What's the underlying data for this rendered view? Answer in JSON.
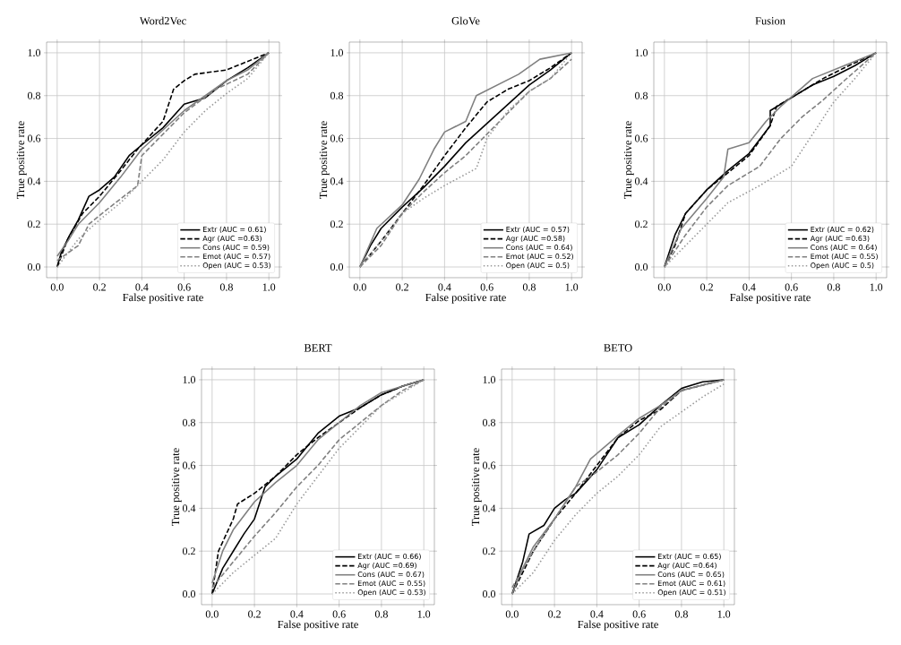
{
  "chart_data": [
    {
      "type": "line",
      "title": "Word2Vec",
      "xlabel": "False positive rate",
      "ylabel": "True positive rate",
      "xlim": [
        -0.05,
        1.05
      ],
      "ylim": [
        -0.05,
        1.05
      ],
      "xticks": [
        {
          "value": 0,
          "label": "0.0"
        },
        {
          "value": 0.2,
          "label": "0.2"
        },
        {
          "value": 0.4,
          "label": "0.4"
        },
        {
          "value": 0.6,
          "label": "0.6"
        },
        {
          "value": 0.8,
          "label": "0.8"
        },
        {
          "value": 1,
          "label": "1.0"
        }
      ],
      "yticks": [
        {
          "value": 0,
          "label": "0.0"
        },
        {
          "value": 0.2,
          "label": "0.2"
        },
        {
          "value": 0.4,
          "label": "0.4"
        },
        {
          "value": 0.6,
          "label": "0.6"
        },
        {
          "value": 0.8,
          "label": "0.8"
        },
        {
          "value": 1,
          "label": "1.0"
        }
      ],
      "grid": true,
      "legend": "bottom right",
      "series": [
        {
          "name": "Extr (AUC = 0.61)",
          "color": "#000000",
          "line_style": "solid",
          "x": [
            0,
            0.02,
            0.06,
            0.1,
            0.15,
            0.2,
            0.27,
            0.34,
            0.4,
            0.5,
            0.6,
            0.7,
            0.8,
            0.9,
            1
          ],
          "values": [
            0,
            0.07,
            0.15,
            0.22,
            0.33,
            0.36,
            0.42,
            0.52,
            0.57,
            0.65,
            0.76,
            0.79,
            0.87,
            0.93,
            1
          ]
        },
        {
          "name": "Agr (AUC =0.63)",
          "color": "#000000",
          "line_style": "dashed",
          "x": [
            0,
            0.05,
            0.12,
            0.2,
            0.3,
            0.38,
            0.5,
            0.55,
            0.6,
            0.65,
            0.8,
            0.9,
            1
          ],
          "values": [
            0,
            0.13,
            0.25,
            0.33,
            0.45,
            0.55,
            0.68,
            0.83,
            0.87,
            0.9,
            0.92,
            0.96,
            1
          ]
        },
        {
          "name": "Cons (AUC = 0.59)",
          "color": "#808080",
          "line_style": "solid",
          "x": [
            0,
            0.05,
            0.1,
            0.2,
            0.3,
            0.4,
            0.5,
            0.6,
            0.7,
            0.8,
            0.9,
            1
          ],
          "values": [
            0.05,
            0.12,
            0.2,
            0.3,
            0.42,
            0.55,
            0.64,
            0.73,
            0.8,
            0.87,
            0.92,
            1
          ]
        },
        {
          "name": "Emot (AUC = 0.57)",
          "color": "#808080",
          "line_style": "dashed",
          "x": [
            0,
            0.1,
            0.15,
            0.25,
            0.38,
            0.4,
            0.5,
            0.6,
            0.75,
            0.9,
            1
          ],
          "values": [
            0.03,
            0.1,
            0.2,
            0.28,
            0.38,
            0.52,
            0.62,
            0.72,
            0.83,
            0.9,
            1
          ]
        },
        {
          "name": "Open (AUC = 0.53)",
          "color": "#999999",
          "line_style": "dotted",
          "x": [
            0,
            0.1,
            0.2,
            0.3,
            0.4,
            0.5,
            0.6,
            0.7,
            0.8,
            0.9,
            1
          ],
          "values": [
            0,
            0.13,
            0.22,
            0.3,
            0.4,
            0.5,
            0.63,
            0.73,
            0.81,
            0.88,
            1
          ]
        }
      ]
    },
    {
      "type": "line",
      "title": "GloVe",
      "xlabel": "False positive rate",
      "ylabel": "True positive rate",
      "xlim": [
        -0.05,
        1.05
      ],
      "ylim": [
        -0.05,
        1.05
      ],
      "xticks": [
        {
          "value": 0,
          "label": "0.0"
        },
        {
          "value": 0.2,
          "label": "0.2"
        },
        {
          "value": 0.4,
          "label": "0.4"
        },
        {
          "value": 0.6,
          "label": "0.6"
        },
        {
          "value": 0.8,
          "label": "0.8"
        },
        {
          "value": 1,
          "label": "1.0"
        }
      ],
      "yticks": [
        {
          "value": 0,
          "label": "0.0"
        },
        {
          "value": 0.2,
          "label": "0.2"
        },
        {
          "value": 0.4,
          "label": "0.4"
        },
        {
          "value": 0.6,
          "label": "0.6"
        },
        {
          "value": 0.8,
          "label": "0.8"
        },
        {
          "value": 1,
          "label": "1.0"
        }
      ],
      "grid": true,
      "legend": "bottom right",
      "series": [
        {
          "name": "Extr (AUC = 0.57)",
          "color": "#000000",
          "line_style": "solid",
          "x": [
            0,
            0.05,
            0.1,
            0.2,
            0.3,
            0.4,
            0.5,
            0.6,
            0.7,
            0.8,
            0.9,
            1
          ],
          "values": [
            0,
            0.1,
            0.18,
            0.28,
            0.37,
            0.47,
            0.58,
            0.67,
            0.76,
            0.85,
            0.92,
            1
          ]
        },
        {
          "name": "Agr (AUC =0.58)",
          "color": "#000000",
          "line_style": "dashed",
          "x": [
            0,
            0.1,
            0.2,
            0.3,
            0.4,
            0.5,
            0.6,
            0.7,
            0.8,
            0.9,
            1
          ],
          "values": [
            0,
            0.12,
            0.25,
            0.38,
            0.52,
            0.65,
            0.77,
            0.83,
            0.87,
            0.93,
            1
          ]
        },
        {
          "name": "Cons (AUC = 0.64)",
          "color": "#808080",
          "line_style": "solid",
          "x": [
            0,
            0.08,
            0.2,
            0.28,
            0.35,
            0.4,
            0.5,
            0.55,
            0.65,
            0.75,
            0.85,
            1
          ],
          "values": [
            0,
            0.18,
            0.29,
            0.41,
            0.55,
            0.63,
            0.68,
            0.8,
            0.85,
            0.9,
            0.97,
            1
          ]
        },
        {
          "name": "Emot (AUC = 0.52)",
          "color": "#808080",
          "line_style": "dashed",
          "x": [
            0,
            0.1,
            0.2,
            0.3,
            0.4,
            0.5,
            0.6,
            0.7,
            0.8,
            0.9,
            1
          ],
          "values": [
            0,
            0.1,
            0.25,
            0.35,
            0.44,
            0.52,
            0.62,
            0.72,
            0.82,
            0.88,
            0.97
          ]
        },
        {
          "name": "Open (AUC = 0.5)",
          "color": "#999999",
          "line_style": "dotted",
          "x": [
            0,
            0.1,
            0.2,
            0.3,
            0.4,
            0.55,
            0.6,
            0.7,
            0.8,
            0.9,
            1
          ],
          "values": [
            0,
            0.12,
            0.25,
            0.32,
            0.38,
            0.46,
            0.6,
            0.73,
            0.82,
            0.88,
            1
          ]
        }
      ]
    },
    {
      "type": "line",
      "title": "Fusion",
      "xlabel": "False positive rate",
      "ylabel": "True positive rate",
      "xlim": [
        -0.05,
        1.05
      ],
      "ylim": [
        -0.05,
        1.05
      ],
      "xticks": [
        {
          "value": 0,
          "label": "0.0"
        },
        {
          "value": 0.2,
          "label": "0.2"
        },
        {
          "value": 0.4,
          "label": "0.4"
        },
        {
          "value": 0.6,
          "label": "0.6"
        },
        {
          "value": 0.8,
          "label": "0.8"
        },
        {
          "value": 1,
          "label": "1.0"
        }
      ],
      "yticks": [
        {
          "value": 0,
          "label": "0.0"
        },
        {
          "value": 0.2,
          "label": "0.2"
        },
        {
          "value": 0.4,
          "label": "0.4"
        },
        {
          "value": 0.6,
          "label": "0.6"
        },
        {
          "value": 0.8,
          "label": "0.8"
        },
        {
          "value": 1,
          "label": "1.0"
        }
      ],
      "grid": true,
      "legend": "bottom right",
      "series": [
        {
          "name": "Extr (AUC = 0.62)",
          "color": "#000000",
          "line_style": "solid",
          "x": [
            0,
            0.05,
            0.1,
            0.2,
            0.3,
            0.4,
            0.5,
            0.5,
            0.6,
            0.7,
            0.8,
            0.9,
            1
          ],
          "values": [
            0,
            0.15,
            0.25,
            0.36,
            0.45,
            0.53,
            0.66,
            0.73,
            0.79,
            0.85,
            0.89,
            0.94,
            1
          ]
        },
        {
          "name": "Agr (AUC =0.63)",
          "color": "#000000",
          "line_style": "dashed",
          "x": [
            0,
            0.05,
            0.1,
            0.2,
            0.3,
            0.4,
            0.5,
            0.53,
            0.65,
            0.75,
            0.85,
            1
          ],
          "values": [
            0,
            0.1,
            0.25,
            0.36,
            0.44,
            0.52,
            0.66,
            0.75,
            0.82,
            0.88,
            0.93,
            1
          ]
        },
        {
          "name": "Cons (AUC = 0.64)",
          "color": "#808080",
          "line_style": "solid",
          "x": [
            0,
            0.08,
            0.2,
            0.28,
            0.3,
            0.4,
            0.48,
            0.55,
            0.7,
            0.85,
            1
          ],
          "values": [
            0,
            0.18,
            0.32,
            0.42,
            0.55,
            0.58,
            0.68,
            0.75,
            0.88,
            0.94,
            1
          ]
        },
        {
          "name": "Emot (AUC = 0.55)",
          "color": "#808080",
          "line_style": "dashed",
          "x": [
            0,
            0.1,
            0.2,
            0.3,
            0.45,
            0.55,
            0.65,
            0.75,
            0.85,
            1
          ],
          "values": [
            0,
            0.15,
            0.28,
            0.38,
            0.47,
            0.6,
            0.7,
            0.78,
            0.87,
            1
          ]
        },
        {
          "name": "Open (AUC = 0.5)",
          "color": "#999999",
          "line_style": "dotted",
          "x": [
            0,
            0.1,
            0.2,
            0.3,
            0.45,
            0.6,
            0.7,
            0.8,
            0.9,
            1
          ],
          "values": [
            0,
            0.1,
            0.2,
            0.3,
            0.38,
            0.47,
            0.62,
            0.77,
            0.88,
            1
          ]
        }
      ]
    },
    {
      "type": "line",
      "title": "BERT",
      "xlabel": "False positive rate",
      "ylabel": "True positive rate",
      "xlim": [
        -0.05,
        1.05
      ],
      "ylim": [
        -0.05,
        1.05
      ],
      "xticks": [
        {
          "value": 0,
          "label": "0.0"
        },
        {
          "value": 0.2,
          "label": "0.2"
        },
        {
          "value": 0.4,
          "label": "0.4"
        },
        {
          "value": 0.6,
          "label": "0.6"
        },
        {
          "value": 0.8,
          "label": "0.8"
        },
        {
          "value": 1,
          "label": "1.0"
        }
      ],
      "yticks": [
        {
          "value": 0,
          "label": "0.0"
        },
        {
          "value": 0.2,
          "label": "0.2"
        },
        {
          "value": 0.4,
          "label": "0.4"
        },
        {
          "value": 0.6,
          "label": "0.6"
        },
        {
          "value": 0.8,
          "label": "0.8"
        },
        {
          "value": 1,
          "label": "1.0"
        }
      ],
      "grid": true,
      "legend": "bottom right",
      "series": [
        {
          "name": "Extr (AUC = 0.66)",
          "color": "#000000",
          "line_style": "solid",
          "x": [
            0,
            0.05,
            0.1,
            0.15,
            0.2,
            0.25,
            0.3,
            0.4,
            0.5,
            0.6,
            0.7,
            0.8,
            0.9,
            1
          ],
          "values": [
            0,
            0.12,
            0.2,
            0.28,
            0.35,
            0.5,
            0.55,
            0.63,
            0.75,
            0.83,
            0.87,
            0.93,
            0.97,
            1
          ]
        },
        {
          "name": "Agr (AUC =0.69)",
          "color": "#000000",
          "line_style": "dashed",
          "x": [
            0,
            0.03,
            0.1,
            0.12,
            0.2,
            0.3,
            0.4,
            0.5,
            0.6,
            0.7,
            0.8,
            0.9,
            1
          ],
          "values": [
            0,
            0.2,
            0.35,
            0.42,
            0.47,
            0.55,
            0.65,
            0.73,
            0.8,
            0.87,
            0.93,
            0.97,
            1
          ]
        },
        {
          "name": "Cons (AUC = 0.67)",
          "color": "#808080",
          "line_style": "solid",
          "x": [
            0,
            0.05,
            0.1,
            0.2,
            0.3,
            0.4,
            0.5,
            0.6,
            0.7,
            0.8,
            1
          ],
          "values": [
            0.05,
            0.2,
            0.3,
            0.43,
            0.52,
            0.6,
            0.72,
            0.8,
            0.88,
            0.94,
            1
          ]
        },
        {
          "name": "Emot (AUC = 0.55)",
          "color": "#808080",
          "line_style": "dashed",
          "x": [
            0,
            0.1,
            0.2,
            0.3,
            0.4,
            0.5,
            0.6,
            0.7,
            0.8,
            0.9,
            1
          ],
          "values": [
            0.03,
            0.15,
            0.27,
            0.38,
            0.5,
            0.6,
            0.72,
            0.8,
            0.88,
            0.95,
            1
          ]
        },
        {
          "name": "Open (AUC = 0.53)",
          "color": "#999999",
          "line_style": "dotted",
          "x": [
            0,
            0.1,
            0.2,
            0.3,
            0.4,
            0.5,
            0.6,
            0.7,
            0.8,
            1
          ],
          "values": [
            0,
            0.1,
            0.18,
            0.26,
            0.42,
            0.55,
            0.68,
            0.78,
            0.88,
            1
          ]
        }
      ]
    },
    {
      "type": "line",
      "title": "BETO",
      "xlabel": "False positive rate",
      "ylabel": "True positive rate",
      "xlim": [
        -0.05,
        1.05
      ],
      "ylim": [
        -0.05,
        1.05
      ],
      "xticks": [
        {
          "value": 0,
          "label": "0.0"
        },
        {
          "value": 0.2,
          "label": "0.2"
        },
        {
          "value": 0.4,
          "label": "0.4"
        },
        {
          "value": 0.6,
          "label": "0.6"
        },
        {
          "value": 0.8,
          "label": "0.8"
        },
        {
          "value": 1,
          "label": "1.0"
        }
      ],
      "yticks": [
        {
          "value": 0,
          "label": "0.0"
        },
        {
          "value": 0.2,
          "label": "0.2"
        },
        {
          "value": 0.4,
          "label": "0.4"
        },
        {
          "value": 0.6,
          "label": "0.6"
        },
        {
          "value": 0.8,
          "label": "0.8"
        },
        {
          "value": 1,
          "label": "1.0"
        }
      ],
      "grid": true,
      "legend": "bottom right",
      "series": [
        {
          "name": "Extr (AUC = 0.65)",
          "color": "#000000",
          "line_style": "solid",
          "x": [
            0,
            0.05,
            0.08,
            0.15,
            0.2,
            0.25,
            0.3,
            0.4,
            0.5,
            0.6,
            0.7,
            0.8,
            0.9,
            1
          ],
          "values": [
            0,
            0.15,
            0.28,
            0.32,
            0.4,
            0.44,
            0.47,
            0.58,
            0.73,
            0.79,
            0.88,
            0.96,
            0.99,
            1
          ]
        },
        {
          "name": "Agr (AUC =0.64)",
          "color": "#000000",
          "line_style": "dashed",
          "x": [
            0,
            0.05,
            0.1,
            0.2,
            0.3,
            0.4,
            0.5,
            0.6,
            0.7,
            0.8,
            1
          ],
          "values": [
            0,
            0.1,
            0.2,
            0.35,
            0.47,
            0.6,
            0.73,
            0.81,
            0.86,
            0.95,
            1
          ]
        },
        {
          "name": "Cons (AUC = 0.65)",
          "color": "#808080",
          "line_style": "solid",
          "x": [
            0,
            0.05,
            0.1,
            0.2,
            0.3,
            0.37,
            0.5,
            0.6,
            0.7,
            0.8,
            1
          ],
          "values": [
            0,
            0.12,
            0.22,
            0.35,
            0.5,
            0.63,
            0.74,
            0.82,
            0.88,
            0.95,
            1
          ]
        },
        {
          "name": "Emot (AUC = 0.61)",
          "color": "#808080",
          "line_style": "dashed",
          "x": [
            0,
            0.1,
            0.2,
            0.3,
            0.4,
            0.5,
            0.6,
            0.7,
            0.8,
            1
          ],
          "values": [
            0.03,
            0.2,
            0.35,
            0.5,
            0.57,
            0.65,
            0.75,
            0.87,
            0.95,
            1
          ]
        },
        {
          "name": "Open (AUC = 0.51)",
          "color": "#999999",
          "line_style": "dotted",
          "x": [
            0,
            0.1,
            0.2,
            0.3,
            0.4,
            0.5,
            0.6,
            0.7,
            0.8,
            0.9,
            1
          ],
          "values": [
            0,
            0.1,
            0.25,
            0.37,
            0.47,
            0.55,
            0.65,
            0.78,
            0.85,
            0.92,
            0.98
          ]
        }
      ]
    }
  ]
}
